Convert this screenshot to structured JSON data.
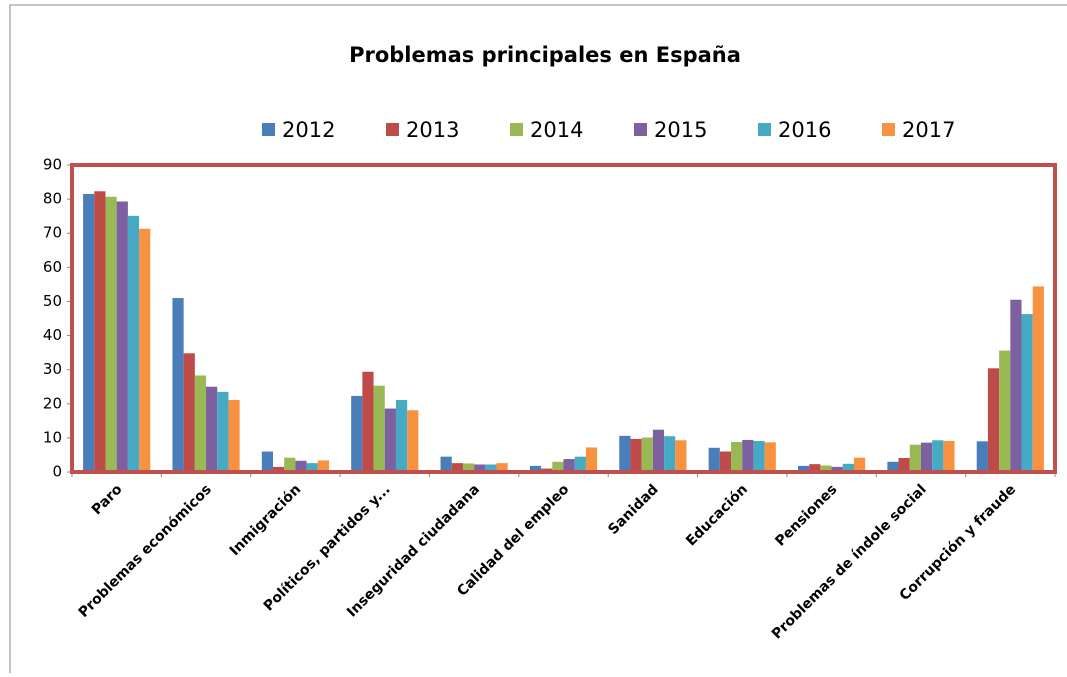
{
  "chart_data": {
    "type": "bar",
    "title": "Problemas principales en España",
    "categories": [
      "Paro",
      "Problemas económicos",
      "Inmigración",
      "Políticos, partidos y...",
      "Inseguridad ciudadana",
      "Calidad del empleo",
      "Sanidad",
      "Educación",
      "Pensiones",
      "Problemas de índole social",
      "Corrupción y fraude"
    ],
    "series": [
      {
        "name": "2012",
        "color": "#4a7ebb",
        "values": [
          81.5,
          51,
          6,
          22.3,
          4.5,
          1.8,
          10.6,
          7.1,
          1.8,
          3.0,
          9.0
        ]
      },
      {
        "name": "2013",
        "color": "#be4b48",
        "values": [
          82.3,
          34.8,
          1.5,
          29.4,
          2.6,
          1.0,
          9.7,
          6.0,
          2.3,
          4.1,
          30.4
        ]
      },
      {
        "name": "2014",
        "color": "#98b954",
        "values": [
          80.7,
          28.3,
          4.2,
          25.3,
          2.5,
          3.0,
          10.1,
          8.8,
          1.9,
          8.0,
          35.6
        ]
      },
      {
        "name": "2015",
        "color": "#7d60a0",
        "values": [
          79.3,
          25.0,
          3.3,
          18.6,
          2.2,
          3.8,
          12.4,
          9.4,
          1.5,
          8.6,
          50.5
        ]
      },
      {
        "name": "2016",
        "color": "#46aac5",
        "values": [
          75.1,
          23.5,
          2.6,
          21.1,
          2.2,
          4.5,
          10.5,
          9.1,
          2.4,
          9.3,
          46.3
        ]
      },
      {
        "name": "2017",
        "color": "#f69240",
        "values": [
          71.3,
          21.1,
          3.4,
          18.1,
          2.6,
          7.2,
          9.3,
          8.7,
          4.2,
          9.1,
          54.4
        ]
      }
    ],
    "ylim": [
      0,
      90
    ],
    "yticks": [
      0,
      10,
      20,
      30,
      40,
      50,
      60,
      70,
      80,
      90
    ]
  }
}
